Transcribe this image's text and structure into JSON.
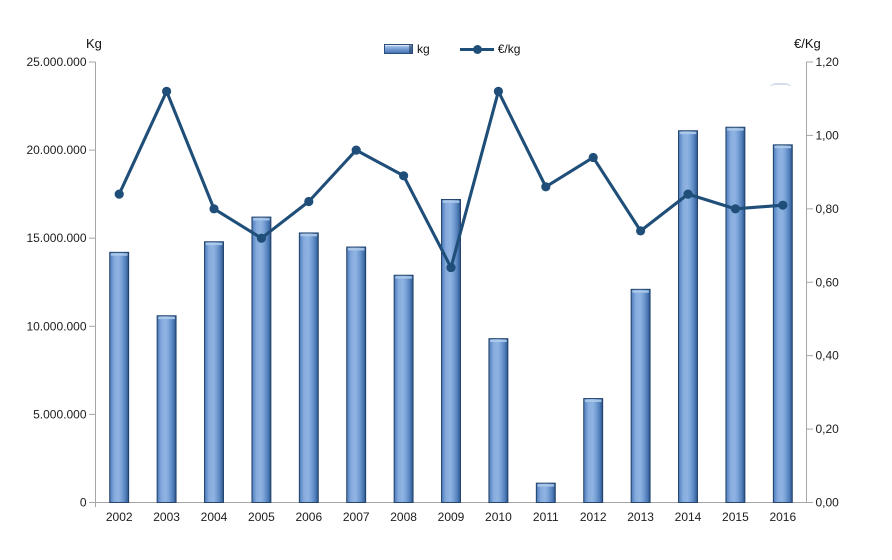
{
  "axes": {
    "left": {
      "title": "Kg",
      "tick_labels": [
        "25.000.000",
        "20.000.000",
        "15.000.000",
        "10.000.000",
        "5.000.000",
        "0"
      ]
    },
    "right": {
      "title": "€/Kg",
      "tick_labels": [
        "1,20",
        "1,00",
        "0,80",
        "0,60",
        "0,40",
        "0,20",
        "0,00"
      ]
    }
  },
  "legend": {
    "bar_label": "kg",
    "line_label": "€/kg"
  },
  "chart_data": {
    "type": "combo",
    "categories": [
      "2002",
      "2003",
      "2004",
      "2005",
      "2006",
      "2007",
      "2008",
      "2009",
      "2010",
      "2011",
      "2012",
      "2013",
      "2014",
      "2015",
      "2016"
    ],
    "series": [
      {
        "name": "kg",
        "type": "bar",
        "axis": "left",
        "values": [
          14200000,
          10600000,
          14800000,
          16200000,
          15300000,
          14500000,
          12900000,
          17200000,
          9300000,
          1100000,
          5900000,
          12100000,
          21100000,
          21300000,
          20300000
        ]
      },
      {
        "name": "€/kg",
        "type": "line",
        "axis": "right",
        "values": [
          0.84,
          1.12,
          0.8,
          0.72,
          0.82,
          0.96,
          0.89,
          0.64,
          1.12,
          0.86,
          0.94,
          0.74,
          0.84,
          0.8,
          0.81
        ]
      }
    ],
    "title": "",
    "left_axis_label": "Kg",
    "right_axis_label": "€/Kg",
    "left_ylim": [
      0,
      25000000
    ],
    "right_ylim": [
      0,
      1.2
    ],
    "grid": false,
    "legend_position": "top-center",
    "colors": {
      "bar_fill": "#7fa6da",
      "bar_border": "#1b3c64",
      "bar_highlight": "#aecbea",
      "line": "#1f4e79",
      "axis": "#a6a6a6",
      "text": "#1c1c1c"
    }
  }
}
